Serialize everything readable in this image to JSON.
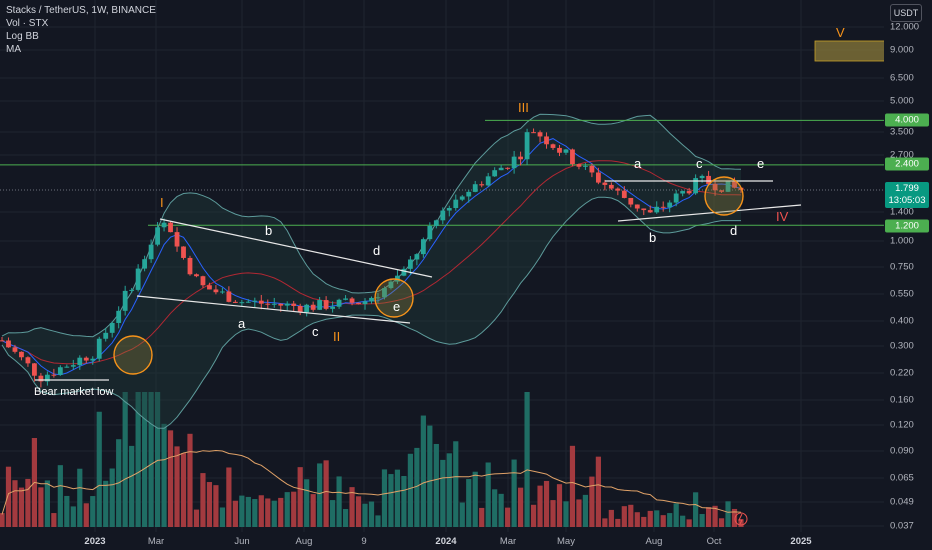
{
  "header": {
    "title": "Stacks / TetherUS, 1W, BINANCE",
    "indicators": [
      "Vol · STX",
      "Log BB",
      "MA"
    ],
    "currency": "USDT"
  },
  "price_axis": {
    "ticks": [
      "12.000",
      "9.000",
      "6.500",
      "5.000",
      "3.500",
      "2.700",
      "1.400",
      "1.000",
      "0.750",
      "0.550",
      "0.400",
      "0.300",
      "0.220",
      "0.160",
      "0.120",
      "0.090",
      "0.065",
      "0.049",
      "0.037"
    ],
    "tags": [
      "4.000",
      "2.400",
      "1.200"
    ],
    "current_price": "1.799",
    "countdown": "13:05:03"
  },
  "time_axis": {
    "ticks": [
      "2023",
      "Mar",
      "Jun",
      "Aug",
      "9",
      "2024",
      "Mar",
      "May",
      "Aug",
      "Oct",
      "2025"
    ]
  },
  "annotations": {
    "wave_labels": [
      "I",
      "II",
      "III",
      "IV",
      "V"
    ],
    "sub_labels": [
      "a",
      "b",
      "c",
      "d",
      "e",
      "a",
      "b",
      "c",
      "d",
      "e"
    ],
    "bear_market_low": "Bear market low"
  },
  "colors": {
    "up": "#26a69a",
    "down": "#ef5350",
    "bb": "#5d9b9b",
    "ma_blue": "#2962ff",
    "ma_red": "#b22833",
    "level_green": "#4caf50",
    "wave_orange": "#f7931a"
  },
  "chart_data": {
    "type": "candlestick",
    "symbol": "Stacks / TetherUS",
    "interval": "1W",
    "exchange": "BINANCE",
    "scale": "log",
    "horizontal_levels": [
      4.0,
      2.4,
      1.2
    ],
    "last_price": 1.799,
    "approx_path": [
      {
        "date": "2022-11",
        "price": 0.32
      },
      {
        "date": "2022-12-end",
        "price": 0.21
      },
      {
        "date": "2023-01-end",
        "price": 0.28
      },
      {
        "date": "2023-02-mid",
        "price": 0.63
      },
      {
        "date": "2023-03-start",
        "price": 1.25
      },
      {
        "date": "2023-05-mid",
        "price": 0.6
      },
      {
        "date": "2023-06",
        "price": 0.5
      },
      {
        "date": "2023-08",
        "price": 0.47
      },
      {
        "date": "2023-09",
        "price": 0.5
      },
      {
        "date": "2023-10-mid",
        "price": 0.65
      },
      {
        "date": "2023-12",
        "price": 1.5
      },
      {
        "date": "2024-02-end",
        "price": 2.7
      },
      {
        "date": "2024-04-start",
        "price": 3.7
      },
      {
        "date": "2024-05",
        "price": 2.0
      },
      {
        "date": "2024-07",
        "price": 1.35
      },
      {
        "date": "2024-09-end",
        "price": 2.0
      },
      {
        "date": "2024-10",
        "price": 1.799
      }
    ]
  }
}
